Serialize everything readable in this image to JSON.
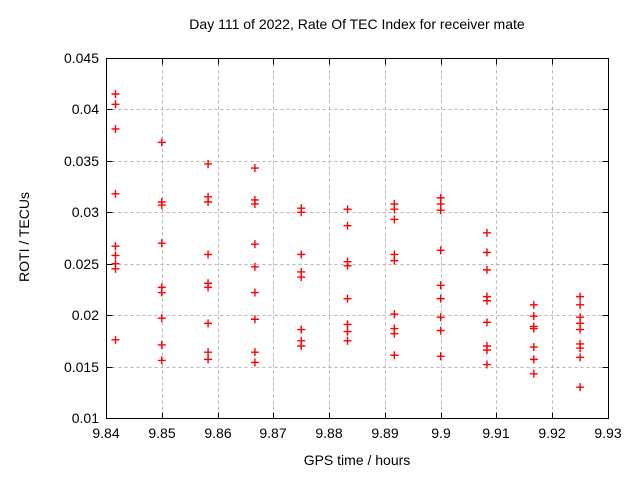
{
  "page": {
    "background": "#ffffff"
  },
  "chart_data": {
    "type": "scatter",
    "title": "Day 111 of 2022, Rate Of TEC Index for receiver mate",
    "xlabel": "GPS time / hours",
    "ylabel": "ROTI / TECUs",
    "xlim": [
      9.84,
      9.93
    ],
    "ylim": [
      0.01,
      0.045
    ],
    "x_ticks": [
      9.84,
      9.85,
      9.86,
      9.87,
      9.88,
      9.89,
      9.9,
      9.91,
      9.92,
      9.93
    ],
    "x_tick_labels": [
      "9.84",
      "9.85",
      "9.86",
      "9.87",
      "9.88",
      "9.89",
      "9.9",
      "9.91",
      "9.92",
      "9.93"
    ],
    "y_ticks": [
      0.01,
      0.015,
      0.02,
      0.025,
      0.03,
      0.035,
      0.04,
      0.045
    ],
    "y_tick_labels": [
      "0.01",
      "0.015",
      "0.02",
      "0.025",
      "0.03",
      "0.035",
      "0.04",
      "0.045"
    ],
    "grid": true,
    "legend_position": "none",
    "marker": "plus",
    "colors": {
      "marker": "#ff0000",
      "grid": "#b4b4b4",
      "axis": "#000000",
      "text": "#000000"
    },
    "series": [
      {
        "name": "ROTI",
        "points": [
          [
            9.8417,
            0.0415
          ],
          [
            9.8417,
            0.0405
          ],
          [
            9.8417,
            0.0381
          ],
          [
            9.8417,
            0.0318
          ],
          [
            9.8417,
            0.0267
          ],
          [
            9.8417,
            0.0258
          ],
          [
            9.8417,
            0.025
          ],
          [
            9.8417,
            0.0245
          ],
          [
            9.8417,
            0.0176
          ],
          [
            9.85,
            0.0368
          ],
          [
            9.85,
            0.031
          ],
          [
            9.85,
            0.0307
          ],
          [
            9.85,
            0.027
          ],
          [
            9.85,
            0.0227
          ],
          [
            9.85,
            0.0222
          ],
          [
            9.85,
            0.0197
          ],
          [
            9.85,
            0.0171
          ],
          [
            9.85,
            0.0156
          ],
          [
            9.8583,
            0.0347
          ],
          [
            9.8583,
            0.0315
          ],
          [
            9.8583,
            0.031
          ],
          [
            9.8583,
            0.0259
          ],
          [
            9.8583,
            0.0231
          ],
          [
            9.8583,
            0.0227
          ],
          [
            9.8583,
            0.0192
          ],
          [
            9.8583,
            0.0164
          ],
          [
            9.8583,
            0.0157
          ],
          [
            9.8667,
            0.0343
          ],
          [
            9.8667,
            0.0312
          ],
          [
            9.8667,
            0.0308
          ],
          [
            9.8667,
            0.0269
          ],
          [
            9.8667,
            0.0247
          ],
          [
            9.8667,
            0.0222
          ],
          [
            9.8667,
            0.0196
          ],
          [
            9.8667,
            0.0164
          ],
          [
            9.8667,
            0.0154
          ],
          [
            9.875,
            0.0304
          ],
          [
            9.875,
            0.03
          ],
          [
            9.875,
            0.0259
          ],
          [
            9.875,
            0.0242
          ],
          [
            9.875,
            0.0237
          ],
          [
            9.875,
            0.0186
          ],
          [
            9.875,
            0.0175
          ],
          [
            9.875,
            0.017
          ],
          [
            9.8833,
            0.0303
          ],
          [
            9.8833,
            0.0287
          ],
          [
            9.8833,
            0.0252
          ],
          [
            9.8833,
            0.0248
          ],
          [
            9.8833,
            0.0216
          ],
          [
            9.8833,
            0.0191
          ],
          [
            9.8833,
            0.0184
          ],
          [
            9.8833,
            0.0175
          ],
          [
            9.8917,
            0.0308
          ],
          [
            9.8917,
            0.0303
          ],
          [
            9.8917,
            0.0293
          ],
          [
            9.8917,
            0.0259
          ],
          [
            9.8917,
            0.0253
          ],
          [
            9.8917,
            0.0201
          ],
          [
            9.8917,
            0.0187
          ],
          [
            9.8917,
            0.0182
          ],
          [
            9.8917,
            0.0161
          ],
          [
            9.9,
            0.0314
          ],
          [
            9.9,
            0.0308
          ],
          [
            9.9,
            0.0302
          ],
          [
            9.9,
            0.0263
          ],
          [
            9.9,
            0.0229
          ],
          [
            9.9,
            0.0216
          ],
          [
            9.9,
            0.0198
          ],
          [
            9.9,
            0.0185
          ],
          [
            9.9,
            0.016
          ],
          [
            9.9083,
            0.028
          ],
          [
            9.9083,
            0.0261
          ],
          [
            9.9083,
            0.0244
          ],
          [
            9.9083,
            0.0218
          ],
          [
            9.9083,
            0.0214
          ],
          [
            9.9083,
            0.0193
          ],
          [
            9.9083,
            0.017
          ],
          [
            9.9083,
            0.0166
          ],
          [
            9.9083,
            0.0152
          ],
          [
            9.9167,
            0.021
          ],
          [
            9.9167,
            0.0199
          ],
          [
            9.9167,
            0.0189
          ],
          [
            9.9167,
            0.0187
          ],
          [
            9.9167,
            0.0169
          ],
          [
            9.9167,
            0.0157
          ],
          [
            9.9167,
            0.0143
          ],
          [
            9.925,
            0.0218
          ],
          [
            9.925,
            0.021
          ],
          [
            9.925,
            0.0198
          ],
          [
            9.925,
            0.0192
          ],
          [
            9.925,
            0.0186
          ],
          [
            9.925,
            0.0172
          ],
          [
            9.925,
            0.0168
          ],
          [
            9.925,
            0.0159
          ],
          [
            9.925,
            0.013
          ]
        ]
      }
    ]
  }
}
